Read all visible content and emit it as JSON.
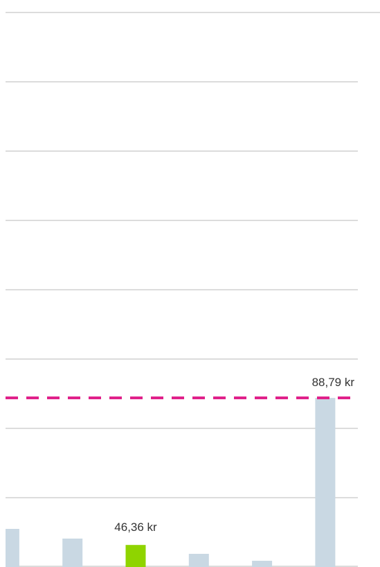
{
  "chart_data": {
    "type": "bar",
    "categories": [
      null,
      null,
      null,
      null,
      null,
      null
    ],
    "values": [
      51,
      48.2,
      46.36,
      43.8,
      41.8,
      88.79
    ],
    "value_labels": [
      null,
      null,
      "46,36 kr",
      null,
      null,
      null
    ],
    "colors": [
      "#c9d8e3",
      "#c9d8e3",
      "#8fd400",
      "#c9d8e3",
      "#c9d8e3",
      "#c9d8e3"
    ],
    "reference_line": {
      "value": 88.79,
      "label": "88,79 kr",
      "color": "#e0218a"
    },
    "ylim": [
      40,
      200
    ],
    "yticks": [
      40,
      60,
      80,
      100,
      120,
      140,
      160,
      180,
      200
    ],
    "grid": true
  }
}
